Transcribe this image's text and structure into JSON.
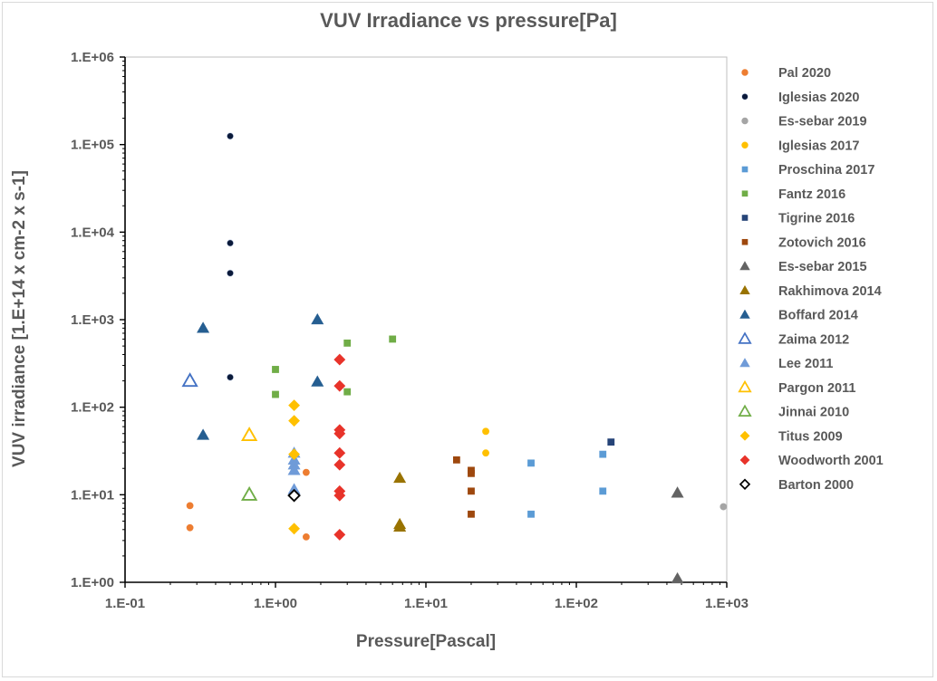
{
  "chart_data": {
    "type": "scatter",
    "title": "VUV Irradiance vs pressure[Pa]",
    "xlabel": "Pressure[Pascal]",
    "ylabel": "VUV irradiance [1.E+14 x cm-2 x s-1]",
    "x_scale": "log",
    "y_scale": "log",
    "xlim": [
      0.1,
      1000
    ],
    "ylim": [
      1,
      1000000
    ],
    "x_ticks": [
      "1.E-01",
      "1.E+00",
      "1.E+01",
      "1.E+02",
      "1.E+03"
    ],
    "y_ticks": [
      "1.E+00",
      "1.E+01",
      "1.E+02",
      "1.E+03",
      "1.E+04",
      "1.E+05",
      "1.E+06"
    ],
    "grid": false,
    "legend_position": "right",
    "series": [
      {
        "name": "Pal 2020",
        "marker": "circle",
        "color": "#ed7d31",
        "filled": true,
        "points": [
          [
            0.27,
            7.5
          ],
          [
            0.27,
            4.2
          ],
          [
            1.6,
            18
          ],
          [
            1.6,
            3.3
          ]
        ]
      },
      {
        "name": "Iglesias 2020",
        "marker": "circle",
        "color": "#0b1a3a",
        "filled": true,
        "points": [
          [
            0.5,
            125000
          ],
          [
            0.5,
            7500
          ],
          [
            0.5,
            3400
          ],
          [
            0.5,
            220
          ]
        ]
      },
      {
        "name": "Es-sebar 2019",
        "marker": "circle",
        "color": "#a5a5a5",
        "filled": true,
        "points": [
          [
            950,
            7.3
          ]
        ]
      },
      {
        "name": "Iglesias 2017",
        "marker": "circle",
        "color": "#ffc000",
        "filled": true,
        "points": [
          [
            25,
            53
          ],
          [
            25,
            30
          ]
        ]
      },
      {
        "name": "Proschina 2017",
        "marker": "square",
        "color": "#5b9bd5",
        "filled": true,
        "points": [
          [
            50,
            23
          ],
          [
            50,
            6
          ],
          [
            150,
            29
          ],
          [
            150,
            11
          ]
        ]
      },
      {
        "name": "Fantz 2016",
        "marker": "square",
        "color": "#70ad47",
        "filled": true,
        "points": [
          [
            1.0,
            270
          ],
          [
            1.0,
            140
          ],
          [
            3.0,
            540
          ],
          [
            3.0,
            150
          ],
          [
            6.0,
            600
          ]
        ]
      },
      {
        "name": "Tigrine 2016",
        "marker": "square",
        "color": "#264478",
        "filled": true,
        "points": [
          [
            170,
            40
          ]
        ]
      },
      {
        "name": "Zotovich 2016",
        "marker": "square",
        "color": "#9e480e",
        "filled": true,
        "points": [
          [
            16,
            25
          ],
          [
            20,
            19
          ],
          [
            20,
            17.5
          ],
          [
            20,
            11
          ],
          [
            20,
            6
          ]
        ]
      },
      {
        "name": "Es-sebar 2015",
        "marker": "triangle",
        "color": "#636363",
        "filled": true,
        "points": [
          [
            470,
            10.5
          ],
          [
            470,
            1.1
          ]
        ]
      },
      {
        "name": "Rakhimova 2014",
        "marker": "triangle",
        "color": "#997300",
        "filled": true,
        "points": [
          [
            6.7,
            15.5
          ],
          [
            6.7,
            4.6
          ],
          [
            6.7,
            4.3
          ]
        ]
      },
      {
        "name": "Boffard 2014",
        "marker": "triangle",
        "color": "#255e91",
        "filled": true,
        "points": [
          [
            0.33,
            800
          ],
          [
            0.33,
            48
          ],
          [
            1.9,
            1000
          ],
          [
            1.9,
            195
          ]
        ]
      },
      {
        "name": "Zaima 2012",
        "marker": "triangle",
        "color": "#4472c4",
        "filled": false,
        "points": [
          [
            0.27,
            200
          ]
        ]
      },
      {
        "name": "Lee 2011",
        "marker": "triangle",
        "color": "#6f9bd8",
        "filled": true,
        "points": [
          [
            1.33,
            30
          ],
          [
            1.33,
            25
          ],
          [
            1.33,
            22
          ],
          [
            1.33,
            19
          ],
          [
            1.33,
            11.5
          ]
        ]
      },
      {
        "name": "Pargon 2011",
        "marker": "triangle",
        "color": "#ffc000",
        "filled": false,
        "points": [
          [
            0.67,
            48
          ]
        ]
      },
      {
        "name": "Jinnai 2010",
        "marker": "triangle",
        "color": "#70ad47",
        "filled": false,
        "points": [
          [
            0.67,
            10
          ]
        ]
      },
      {
        "name": "Titus 2009",
        "marker": "diamond",
        "color": "#ffc000",
        "filled": true,
        "points": [
          [
            1.33,
            105
          ],
          [
            1.33,
            70
          ],
          [
            1.33,
            29
          ],
          [
            1.33,
            4.1
          ]
        ]
      },
      {
        "name": "Woodworth 2001",
        "marker": "diamond",
        "color": "#e8332a",
        "filled": true,
        "points": [
          [
            2.67,
            350
          ],
          [
            2.67,
            175
          ],
          [
            2.67,
            55
          ],
          [
            2.67,
            50
          ],
          [
            2.67,
            30
          ],
          [
            2.67,
            22
          ],
          [
            2.67,
            11
          ],
          [
            2.67,
            9.8
          ],
          [
            2.67,
            3.5
          ]
        ]
      },
      {
        "name": "Barton 2000",
        "marker": "diamond",
        "color": "#000000",
        "filled": false,
        "points": [
          [
            1.33,
            9.8
          ]
        ]
      }
    ]
  }
}
